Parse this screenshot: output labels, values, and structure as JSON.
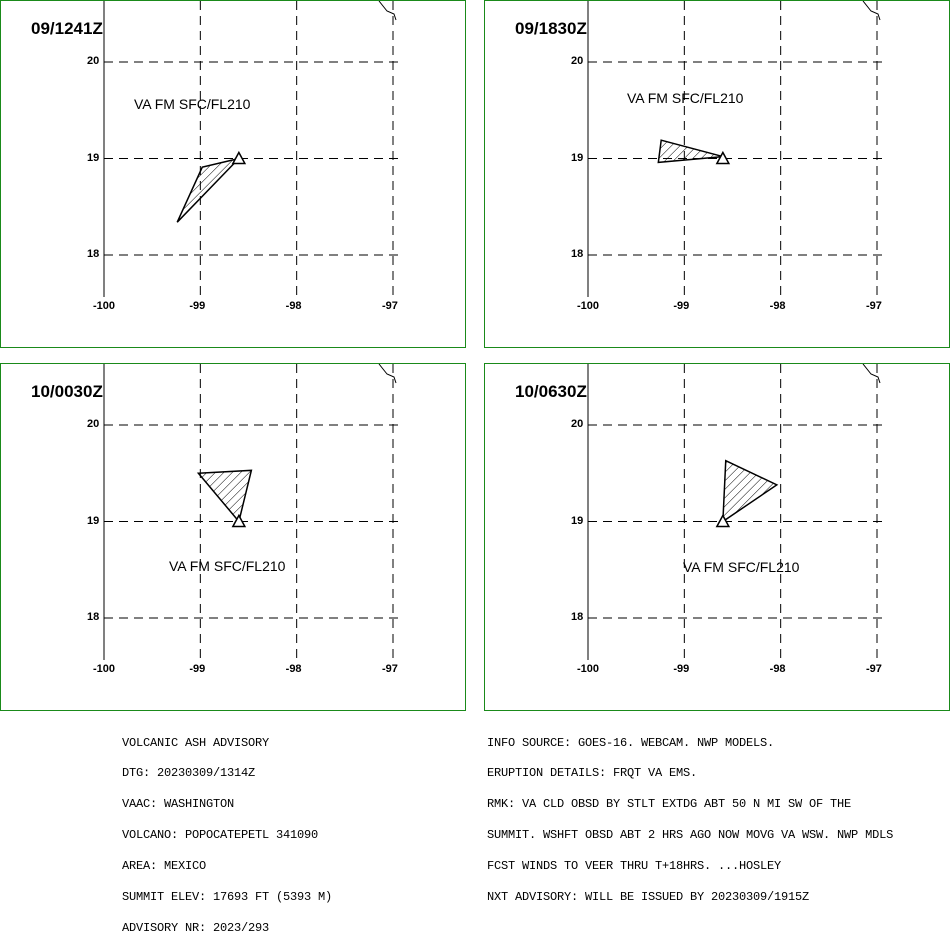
{
  "panels": [
    {
      "timestamp": "09/1241Z",
      "label": "VA FM SFC/FL210",
      "polygon": [
        [
          -98.6,
          19.0
        ],
        [
          -98.98,
          18.91
        ],
        [
          -99.24,
          18.34
        ],
        [
          -98.6,
          19.0
        ]
      ]
    },
    {
      "timestamp": "09/1830Z",
      "label": "VA FM SFC/FL210",
      "polygon": [
        [
          -99.24,
          19.19
        ],
        [
          -98.6,
          19.02
        ],
        [
          -99.27,
          18.96
        ],
        [
          -99.24,
          19.19
        ]
      ]
    },
    {
      "timestamp": "10/0030Z",
      "label": "VA FM SFC/FL210",
      "polygon": [
        [
          -99.02,
          19.5
        ],
        [
          -98.47,
          19.53
        ],
        [
          -98.6,
          19.0
        ],
        [
          -99.02,
          19.5
        ]
      ]
    },
    {
      "timestamp": "10/0630Z",
      "label": "VA FM SFC/FL210",
      "polygon": [
        [
          -98.57,
          19.63
        ],
        [
          -98.04,
          19.38
        ],
        [
          -98.6,
          19.0
        ],
        [
          -98.57,
          19.63
        ]
      ]
    }
  ],
  "volcano_location": {
    "lon": -98.6,
    "lat": 19.0
  },
  "axes": {
    "lon_ticks": [
      "-100",
      "-99",
      "-98",
      "-97"
    ],
    "lat_ticks": [
      "20",
      "19",
      "18"
    ],
    "lon_range": [
      -100,
      -97
    ],
    "lat_range": [
      18,
      20
    ]
  },
  "advisory": {
    "lines": [
      "VOLCANIC ASH ADVISORY",
      "DTG: 20230309/1314Z",
      "VAAC: WASHINGTON",
      "VOLCANO: POPOCATEPETL 341090",
      "AREA: MEXICO",
      "SUMMIT ELEV: 17693 FT (5393 M)",
      "ADVISORY NR: 2023/293"
    ]
  },
  "details": {
    "lines": [
      "INFO SOURCE: GOES-16. WEBCAM. NWP MODELS.",
      "ERUPTION DETAILS: FRQT VA EMS.",
      "RMK: VA CLD OBSD BY STLT EXTDG ABT 50 N MI SW OF THE",
      "SUMMIT. WSHFT OBSD ABT 2 HRS AGO NOW MOVG VA WSW. NWP MDLS",
      "FCST WINDS TO VEER THRU T+18HRS. ...HOSLEY",
      "NXT ADVISORY: WILL BE ISSUED BY 20230309/1915Z"
    ]
  },
  "colors": {
    "panel_border": "#1a8a1a",
    "grid": "#000000",
    "background": "#ffffff"
  }
}
